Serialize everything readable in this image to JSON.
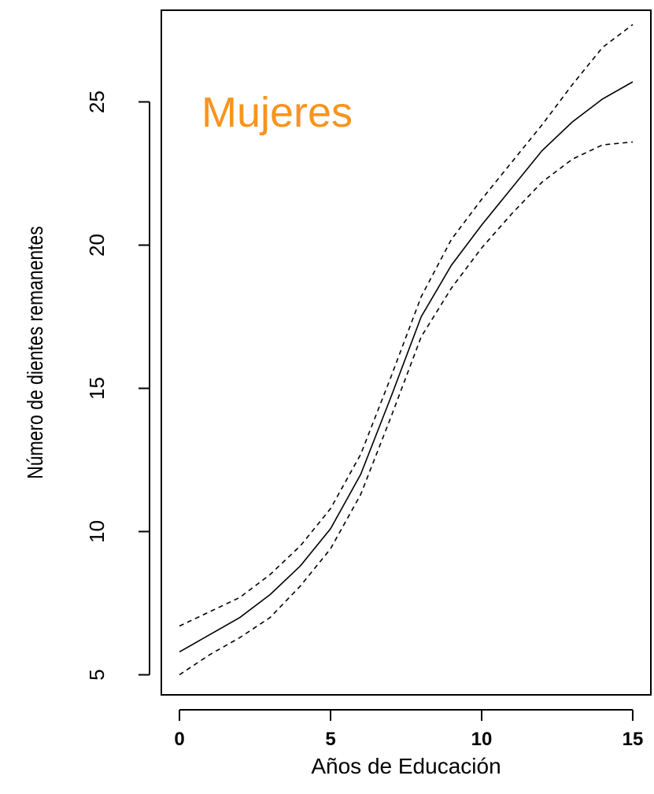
{
  "chart_data": {
    "type": "line",
    "title": "",
    "xlabel": "Años de Educación",
    "ylabel": "Número de dientes remanentes",
    "annotation": "Mujeres",
    "annotation_color": "#f7941d",
    "xlim": [
      -0.6,
      15.6
    ],
    "ylim": [
      4.3,
      28.2
    ],
    "x_ticks": [
      0,
      5,
      10,
      15
    ],
    "y_ticks": [
      5,
      10,
      15,
      20,
      25
    ],
    "grid": false,
    "series": [
      {
        "style": "solid",
        "x": [
          0,
          1,
          2,
          3,
          4,
          5,
          6,
          7,
          8,
          9,
          10,
          11,
          12,
          13,
          14,
          15
        ],
        "y": [
          5.8,
          6.4,
          7.0,
          7.8,
          8.8,
          10.1,
          12.0,
          14.7,
          17.5,
          19.3,
          20.7,
          22.0,
          23.3,
          24.3,
          25.1,
          25.7
        ]
      },
      {
        "style": "dashed",
        "x": [
          0,
          1,
          2,
          3,
          4,
          5,
          6,
          7,
          8,
          9,
          10,
          11,
          12,
          13,
          14,
          15
        ],
        "y": [
          6.7,
          7.2,
          7.7,
          8.5,
          9.5,
          10.8,
          12.7,
          15.4,
          18.2,
          20.2,
          21.6,
          22.9,
          24.2,
          25.6,
          26.9,
          27.7
        ]
      },
      {
        "style": "dashed",
        "x": [
          0,
          1,
          2,
          3,
          4,
          5,
          6,
          7,
          8,
          9,
          10,
          11,
          12,
          13,
          14,
          15
        ],
        "y": [
          5.0,
          5.7,
          6.3,
          7.0,
          8.1,
          9.4,
          11.3,
          14.0,
          16.8,
          18.5,
          19.9,
          21.1,
          22.2,
          23.0,
          23.5,
          23.6
        ]
      }
    ]
  }
}
